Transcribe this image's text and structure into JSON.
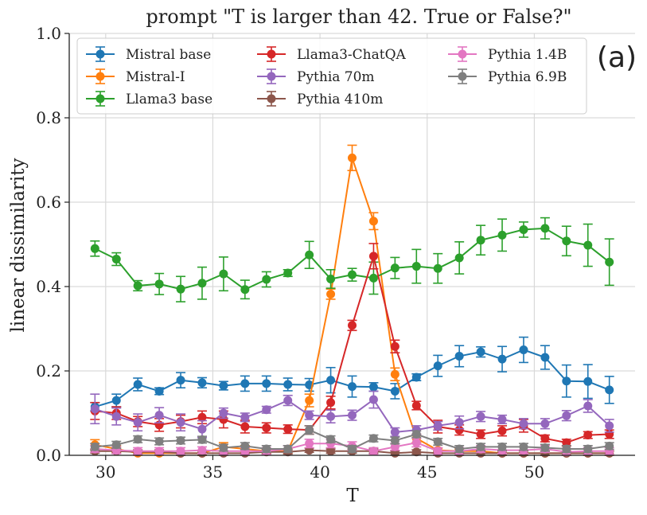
{
  "chart_data": {
    "type": "line",
    "title": "prompt \"T is larger than 42. True or False?\"",
    "panel_label": "(a)",
    "xlabel": "T",
    "ylabel": "linear dissimilarity",
    "xlim": [
      28.3,
      54.7
    ],
    "ylim": [
      0.0,
      1.0
    ],
    "xticks": [
      30,
      35,
      40,
      45,
      50
    ],
    "yticks": [
      0.0,
      0.2,
      0.4,
      0.6,
      0.8,
      1.0
    ],
    "xtick_labels": [
      "30",
      "35",
      "40",
      "45",
      "50"
    ],
    "ytick_labels": [
      "0.0",
      "0.2",
      "0.4",
      "0.6",
      "0.8",
      "1.0"
    ],
    "grid": true,
    "legend_position": "top",
    "x": [
      29.5,
      30.5,
      31.5,
      32.5,
      33.5,
      34.5,
      35.5,
      36.5,
      37.5,
      38.5,
      39.5,
      40.5,
      41.5,
      42.5,
      43.5,
      44.5,
      45.5,
      46.5,
      47.5,
      48.5,
      49.5,
      50.5,
      51.5,
      52.5,
      53.5
    ],
    "series": [
      {
        "name": "Mistral base",
        "color": "#1f77b4",
        "values": [
          0.115,
          0.13,
          0.168,
          0.152,
          0.178,
          0.172,
          0.165,
          0.17,
          0.17,
          0.168,
          0.167,
          0.178,
          0.163,
          0.162,
          0.152,
          0.185,
          0.212,
          0.235,
          0.245,
          0.228,
          0.25,
          0.232,
          0.176,
          0.175,
          0.155
        ],
        "errors": [
          0.01,
          0.015,
          0.015,
          0.008,
          0.018,
          0.012,
          0.01,
          0.018,
          0.018,
          0.015,
          0.015,
          0.03,
          0.025,
          0.01,
          0.018,
          0.008,
          0.025,
          0.025,
          0.012,
          0.03,
          0.03,
          0.028,
          0.038,
          0.04,
          0.032
        ]
      },
      {
        "name": "Mistral-I",
        "color": "#ff7f0e",
        "values": [
          0.025,
          0.015,
          0.005,
          0.005,
          0.005,
          0.005,
          0.02,
          0.015,
          0.01,
          0.01,
          0.13,
          0.382,
          0.705,
          0.555,
          0.192,
          0.04,
          0.012,
          0.01,
          0.01,
          0.005,
          0.005,
          0.005,
          0.005,
          0.005,
          0.005
        ],
        "errors": [
          0.012,
          0.008,
          0.005,
          0.005,
          0.005,
          0.005,
          0.01,
          0.008,
          0.005,
          0.005,
          0.015,
          0.012,
          0.03,
          0.02,
          0.015,
          0.01,
          0.005,
          0.005,
          0.005,
          0.005,
          0.005,
          0.005,
          0.005,
          0.005,
          0.005
        ]
      },
      {
        "name": "Llama3 base",
        "color": "#2ca02c",
        "values": [
          0.49,
          0.465,
          0.402,
          0.406,
          0.394,
          0.408,
          0.43,
          0.393,
          0.417,
          0.432,
          0.475,
          0.418,
          0.428,
          0.42,
          0.444,
          0.448,
          0.443,
          0.468,
          0.51,
          0.522,
          0.535,
          0.538,
          0.508,
          0.498,
          0.458
        ],
        "errors": [
          0.018,
          0.015,
          0.012,
          0.025,
          0.03,
          0.038,
          0.04,
          0.022,
          0.018,
          0.008,
          0.032,
          0.022,
          0.015,
          0.038,
          0.025,
          0.04,
          0.035,
          0.038,
          0.035,
          0.038,
          0.018,
          0.025,
          0.035,
          0.05,
          0.055
        ]
      },
      {
        "name": "Llama3-ChatQA",
        "color": "#d62728",
        "values": [
          0.105,
          0.1,
          0.08,
          0.072,
          0.08,
          0.09,
          0.085,
          0.068,
          0.065,
          0.062,
          0.06,
          0.125,
          0.308,
          0.472,
          0.258,
          0.118,
          0.068,
          0.06,
          0.05,
          0.058,
          0.07,
          0.04,
          0.03,
          0.048,
          0.05
        ],
        "errors": [
          0.02,
          0.015,
          0.012,
          0.015,
          0.015,
          0.015,
          0.02,
          0.015,
          0.012,
          0.01,
          0.01,
          0.015,
          0.012,
          0.03,
          0.015,
          0.01,
          0.015,
          0.012,
          0.01,
          0.012,
          0.015,
          0.008,
          0.008,
          0.008,
          0.01
        ]
      },
      {
        "name": "Pythia 70m",
        "color": "#9467bd",
        "values": [
          0.11,
          0.092,
          0.078,
          0.095,
          0.078,
          0.062,
          0.1,
          0.09,
          0.108,
          0.13,
          0.095,
          0.092,
          0.095,
          0.132,
          0.055,
          0.06,
          0.07,
          0.078,
          0.092,
          0.085,
          0.075,
          0.075,
          0.094,
          0.117,
          0.07
        ],
        "errors": [
          0.035,
          0.02,
          0.02,
          0.018,
          0.02,
          0.02,
          0.012,
          0.01,
          0.008,
          0.012,
          0.01,
          0.015,
          0.012,
          0.02,
          0.01,
          0.01,
          0.01,
          0.015,
          0.012,
          0.01,
          0.012,
          0.012,
          0.012,
          0.015,
          0.015
        ]
      },
      {
        "name": "Pythia 410m",
        "color": "#8c564b",
        "values": [
          0.01,
          0.01,
          0.008,
          0.008,
          0.005,
          0.005,
          0.005,
          0.005,
          0.008,
          0.008,
          0.012,
          0.01,
          0.01,
          0.01,
          0.005,
          0.008,
          0.005,
          0.005,
          0.005,
          0.005,
          0.005,
          0.005,
          0.005,
          0.005,
          0.005
        ],
        "errors": [
          0.005,
          0.005,
          0.005,
          0.005,
          0.005,
          0.005,
          0.005,
          0.005,
          0.005,
          0.005,
          0.005,
          0.005,
          0.005,
          0.005,
          0.005,
          0.005,
          0.005,
          0.005,
          0.005,
          0.005,
          0.005,
          0.005,
          0.005,
          0.005,
          0.005
        ]
      },
      {
        "name": "Pythia 1.4B",
        "color": "#e377c2",
        "values": [
          0.015,
          0.012,
          0.01,
          0.01,
          0.01,
          0.012,
          0.01,
          0.01,
          0.01,
          0.015,
          0.028,
          0.028,
          0.022,
          0.01,
          0.02,
          0.03,
          0.01,
          0.01,
          0.015,
          0.012,
          0.012,
          0.015,
          0.008,
          0.01,
          0.01
        ],
        "errors": [
          0.008,
          0.008,
          0.008,
          0.008,
          0.008,
          0.008,
          0.008,
          0.008,
          0.008,
          0.008,
          0.01,
          0.01,
          0.01,
          0.008,
          0.008,
          0.01,
          0.008,
          0.008,
          0.008,
          0.008,
          0.008,
          0.008,
          0.008,
          0.008,
          0.008
        ]
      },
      {
        "name": "Pythia 6.9B",
        "color": "#7f7f7f",
        "values": [
          0.02,
          0.025,
          0.038,
          0.033,
          0.035,
          0.037,
          0.018,
          0.022,
          0.015,
          0.015,
          0.06,
          0.038,
          0.015,
          0.04,
          0.035,
          0.05,
          0.032,
          0.015,
          0.02,
          0.02,
          0.02,
          0.018,
          0.015,
          0.015,
          0.022
        ],
        "errors": [
          0.008,
          0.008,
          0.008,
          0.008,
          0.008,
          0.008,
          0.008,
          0.008,
          0.008,
          0.008,
          0.01,
          0.008,
          0.008,
          0.008,
          0.008,
          0.008,
          0.008,
          0.008,
          0.008,
          0.008,
          0.008,
          0.008,
          0.008,
          0.008,
          0.008
        ]
      }
    ]
  }
}
